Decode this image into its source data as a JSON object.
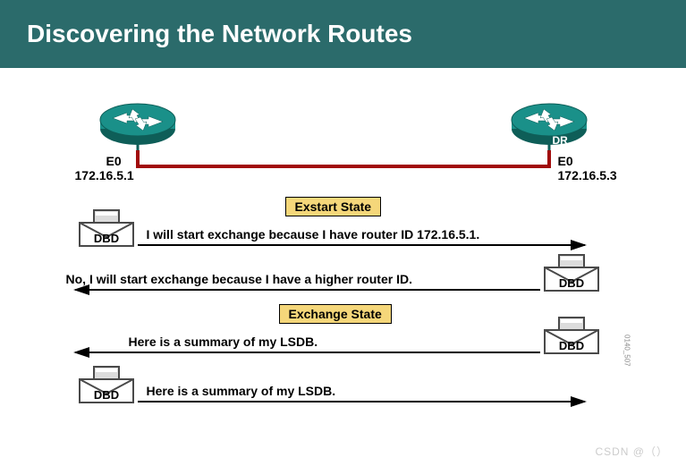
{
  "banner": {
    "title": "Discovering the Network Routes",
    "bg_color": "#2b6b6b",
    "text_color": "#ffffff",
    "fontsize": 28
  },
  "routers": {
    "color": "#1a9089",
    "dr_label": "DR",
    "left": {
      "iface": "E0",
      "ip": "172.16.5.1"
    },
    "right": {
      "iface": "E0",
      "ip": "172.16.5.3"
    },
    "link_color": "#a10b0b"
  },
  "states": {
    "exstart": {
      "label": "Exstart State",
      "bg": "#f5d77a",
      "border": "#000000"
    },
    "exchange": {
      "label": "Exchange State",
      "bg": "#f5d77a",
      "border": "#000000"
    }
  },
  "envelope": {
    "label": "DBD",
    "edge_color": "#4a4a4a",
    "fill": "#ffffff",
    "shadow": "#dcdcdc"
  },
  "messages": {
    "m1": "I will start exchange because I have router ID 172.16.5.1.",
    "m2": "No, I will start exchange because I have a higher router ID.",
    "m3": "Here is a summary of my LSDB.",
    "m4": "Here is a summary of my LSDB.",
    "fontsize": 14
  },
  "arrow": {
    "color": "#000000",
    "width": 2
  },
  "watermark": "CSDN @（）",
  "side_text": "0140_507"
}
